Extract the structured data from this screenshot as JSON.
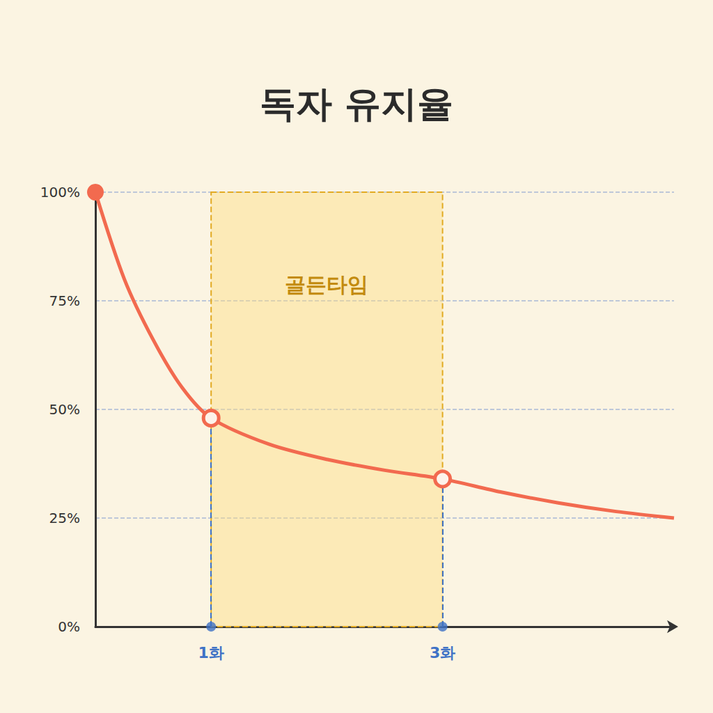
{
  "chart_data": {
    "type": "line",
    "title": "독자 유지율",
    "x": [
      0,
      0.25,
      0.5,
      0.75,
      1,
      1.5,
      2,
      2.5,
      3,
      3.5,
      4,
      4.5,
      5
    ],
    "values": [
      100,
      80,
      66,
      55,
      48,
      42,
      38.5,
      36,
      34,
      31,
      28.5,
      26.5,
      25
    ],
    "color": "#f26a4f",
    "marker": "circle",
    "xlim": [
      0,
      5
    ],
    "xticks": [
      {
        "value": 1,
        "label": "1화"
      },
      {
        "value": 3,
        "label": "3화"
      }
    ],
    "ylim": [
      0,
      100
    ],
    "yticks": [
      {
        "value": 0,
        "label": "0%"
      },
      {
        "value": 25,
        "label": "25%"
      },
      {
        "value": 50,
        "label": "50%"
      },
      {
        "value": 75,
        "label": "75%"
      },
      {
        "value": 100,
        "label": "100%"
      }
    ],
    "grid": true,
    "annotation": {
      "text": "골든타임",
      "x_start": 1,
      "x_end": 3
    }
  }
}
